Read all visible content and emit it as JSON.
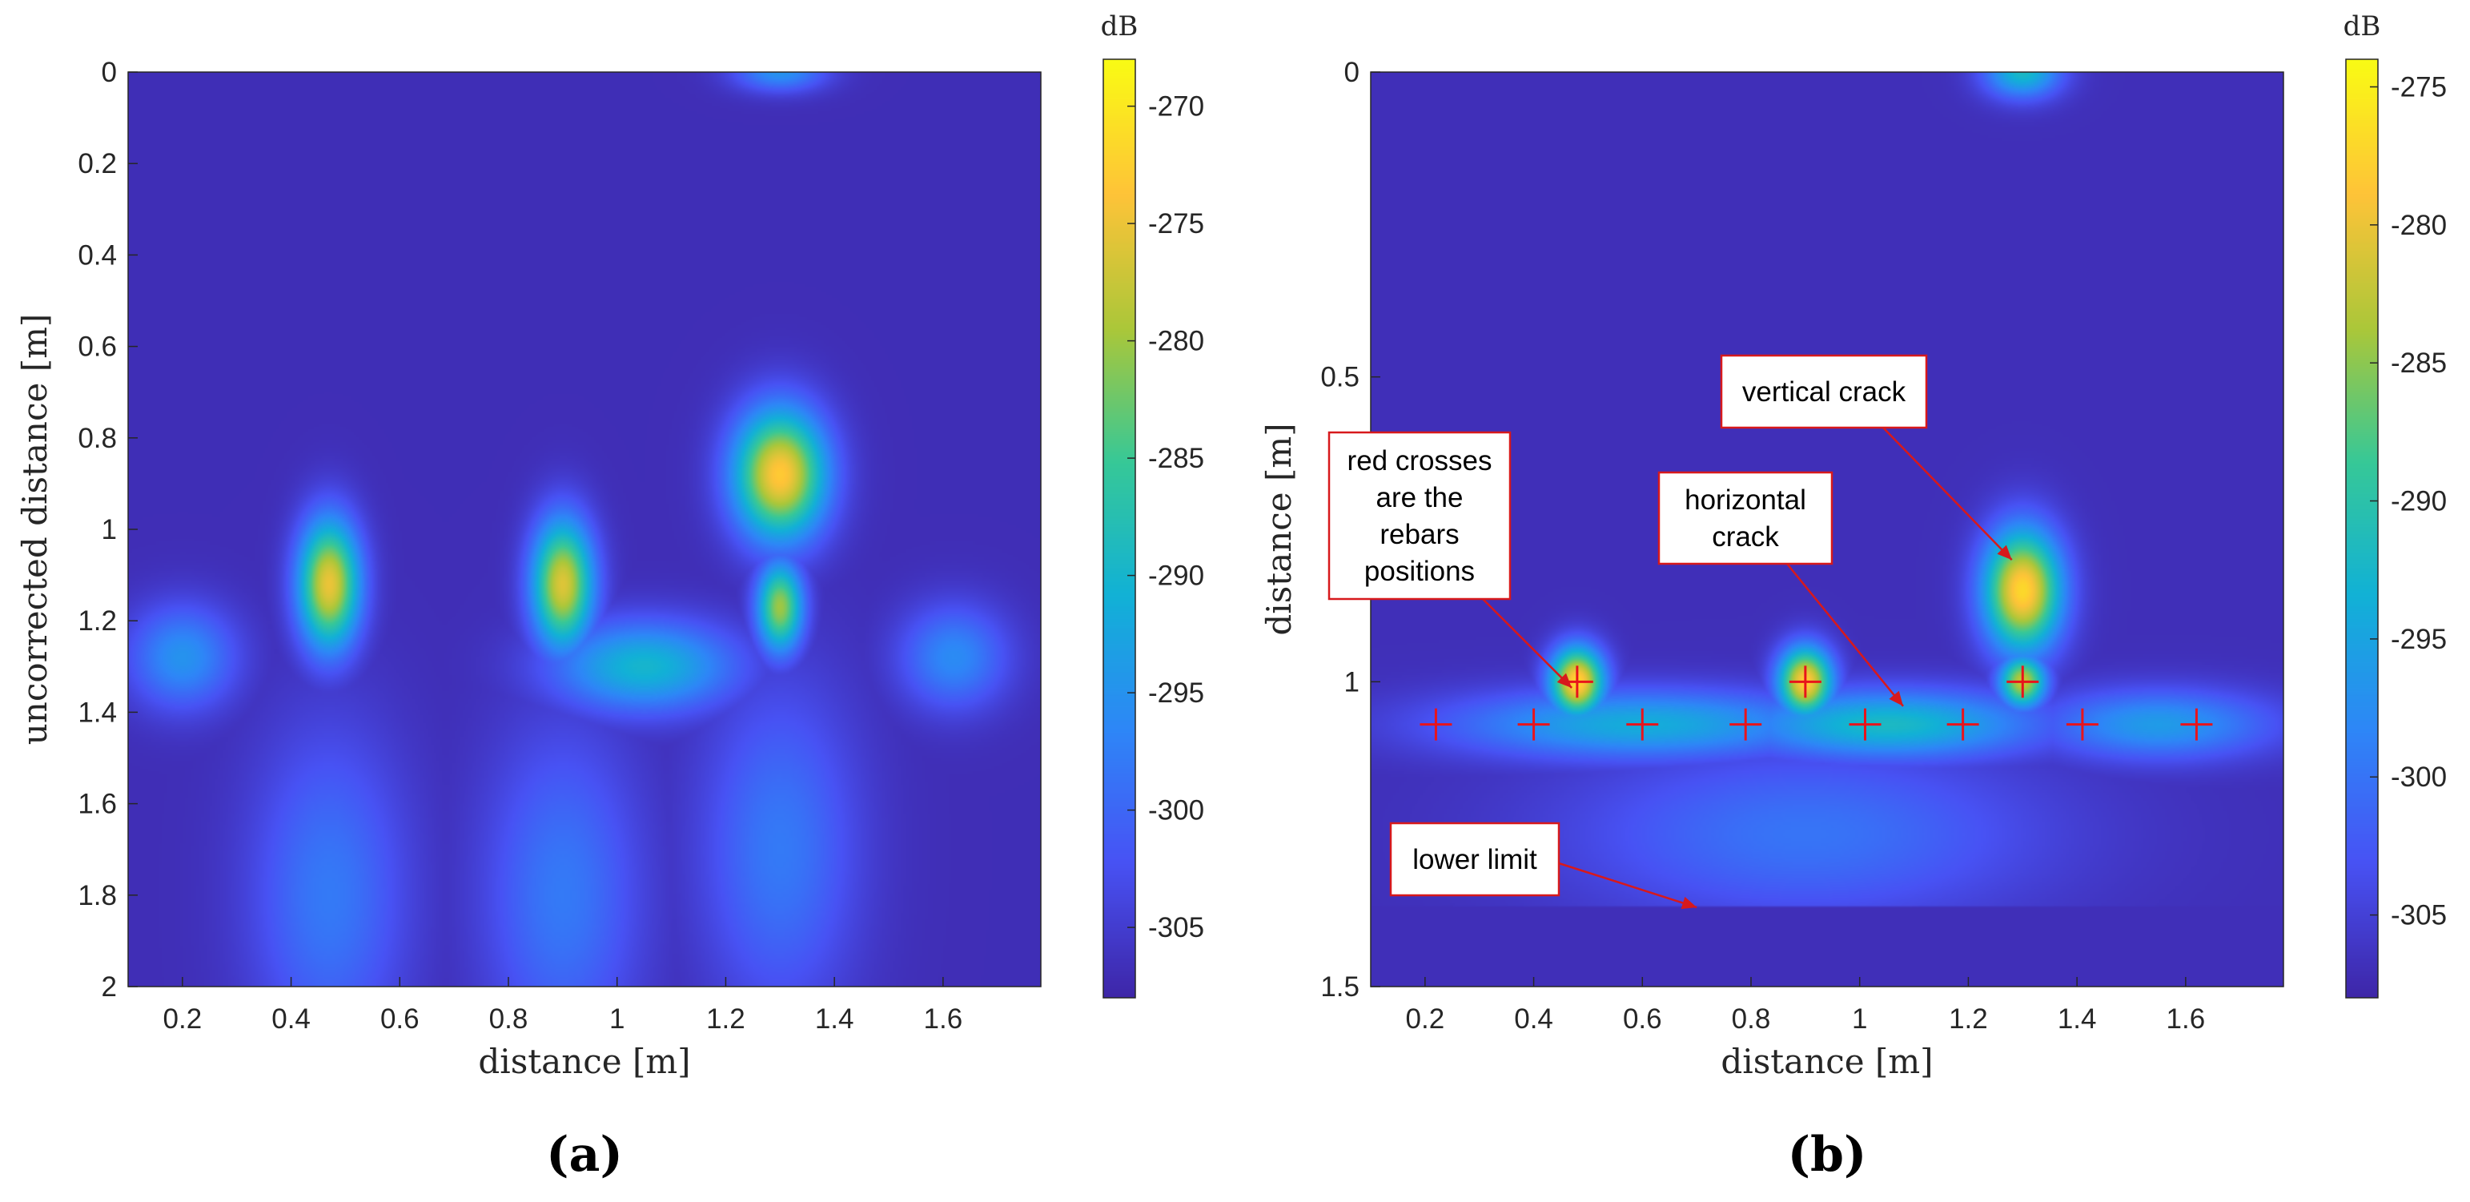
{
  "chart_data": [
    {
      "type": "heatmap",
      "panel_label": "(a)",
      "xlabel": "distance [m]",
      "ylabel": "uncorrected distance [m]",
      "xlim": [
        0.1,
        1.78
      ],
      "ylim": [
        0,
        2
      ],
      "y_reversed": true,
      "xticks": [
        "0.2",
        "0.4",
        "0.6",
        "0.8",
        "1",
        "1.2",
        "1.4",
        "1.6"
      ],
      "yticks": [
        "0",
        "0.2",
        "0.4",
        "0.6",
        "0.8",
        "1",
        "1.2",
        "1.4",
        "1.6",
        "1.8",
        "2"
      ],
      "colorbar": {
        "unit": "dB",
        "range": [
          -308,
          -268
        ],
        "ticks": [
          "-270",
          "-275",
          "-280",
          "-285",
          "-290",
          "-295",
          "-300",
          "-305"
        ],
        "colormap": "parula"
      },
      "background_db": -307,
      "blobs": [
        {
          "x": 1.3,
          "y": 0.0,
          "sx": 0.06,
          "sy": 0.03,
          "db": -295
        },
        {
          "x": 1.3,
          "y": 0.88,
          "sx": 0.06,
          "sy": 0.1,
          "db": -273
        },
        {
          "x": 1.3,
          "y": 1.17,
          "sx": 0.03,
          "sy": 0.07,
          "db": -280
        },
        {
          "x": 0.47,
          "y": 1.12,
          "sx": 0.04,
          "sy": 0.1,
          "db": -275
        },
        {
          "x": 0.9,
          "y": 1.12,
          "sx": 0.04,
          "sy": 0.1,
          "db": -276
        },
        {
          "x": 1.05,
          "y": 1.3,
          "sx": 0.12,
          "sy": 0.07,
          "db": -290
        },
        {
          "x": 0.2,
          "y": 1.28,
          "sx": 0.07,
          "sy": 0.08,
          "db": -295
        },
        {
          "x": 1.62,
          "y": 1.28,
          "sx": 0.07,
          "sy": 0.08,
          "db": -296
        },
        {
          "x": 0.47,
          "y": 1.8,
          "sx": 0.1,
          "sy": 0.25,
          "db": -298
        },
        {
          "x": 0.9,
          "y": 1.8,
          "sx": 0.1,
          "sy": 0.25,
          "db": -298
        },
        {
          "x": 1.3,
          "y": 1.7,
          "sx": 0.1,
          "sy": 0.25,
          "db": -298
        }
      ]
    },
    {
      "type": "heatmap",
      "panel_label": "(b)",
      "xlabel": "distance [m]",
      "ylabel": "distance [m]",
      "xlim": [
        0.1,
        1.78
      ],
      "ylim": [
        0,
        1.5
      ],
      "y_reversed": true,
      "xticks": [
        "0.2",
        "0.4",
        "0.6",
        "0.8",
        "1",
        "1.2",
        "1.4",
        "1.6"
      ],
      "yticks": [
        "0",
        "0.5",
        "1",
        "1.5"
      ],
      "colorbar": {
        "unit": "dB",
        "range": [
          -308,
          -274
        ],
        "ticks": [
          "-275",
          "-280",
          "-285",
          "-290",
          "-295",
          "-300",
          "-305"
        ],
        "colormap": "parula"
      },
      "background_db": -307,
      "lower_limit_y": 1.37,
      "blobs": [
        {
          "x": 1.3,
          "y": 0.0,
          "sx": 0.05,
          "sy": 0.03,
          "db": -292
        },
        {
          "x": 1.3,
          "y": 0.85,
          "sx": 0.05,
          "sy": 0.07,
          "db": -277
        },
        {
          "x": 0.48,
          "y": 1.0,
          "sx": 0.035,
          "sy": 0.04,
          "db": -277
        },
        {
          "x": 0.9,
          "y": 1.0,
          "sx": 0.035,
          "sy": 0.04,
          "db": -278
        },
        {
          "x": 1.3,
          "y": 1.0,
          "sx": 0.03,
          "sy": 0.03,
          "db": -282
        },
        {
          "x": 1.05,
          "y": 1.07,
          "sx": 0.2,
          "sy": 0.04,
          "db": -292
        },
        {
          "x": 0.6,
          "y": 1.07,
          "sx": 0.25,
          "sy": 0.04,
          "db": -294
        },
        {
          "x": 1.55,
          "y": 1.07,
          "sx": 0.15,
          "sy": 0.04,
          "db": -296
        },
        {
          "x": 0.9,
          "y": 1.25,
          "sx": 0.3,
          "sy": 0.1,
          "db": -300
        }
      ],
      "rebars": [
        {
          "x": 0.22,
          "y": 1.07
        },
        {
          "x": 0.4,
          "y": 1.07
        },
        {
          "x": 0.48,
          "y": 1.0
        },
        {
          "x": 0.6,
          "y": 1.07
        },
        {
          "x": 0.79,
          "y": 1.07
        },
        {
          "x": 0.9,
          "y": 1.0
        },
        {
          "x": 1.01,
          "y": 1.07
        },
        {
          "x": 1.19,
          "y": 1.07
        },
        {
          "x": 1.3,
          "y": 1.0
        },
        {
          "x": 1.41,
          "y": 1.07
        },
        {
          "x": 1.62,
          "y": 1.07
        }
      ],
      "annotations": [
        {
          "lines": [
            "vertical crack"
          ],
          "target": {
            "x": 1.28,
            "y": 0.8
          }
        },
        {
          "lines": [
            "horizontal",
            "crack"
          ],
          "target": {
            "x": 1.08,
            "y": 1.04
          }
        },
        {
          "lines": [
            "red crosses",
            "are the",
            "rebars",
            "positions"
          ],
          "target": {
            "x": 0.47,
            "y": 1.01
          }
        },
        {
          "lines": [
            "lower limit"
          ],
          "target": {
            "x": 0.7,
            "y": 1.37
          }
        }
      ]
    }
  ]
}
